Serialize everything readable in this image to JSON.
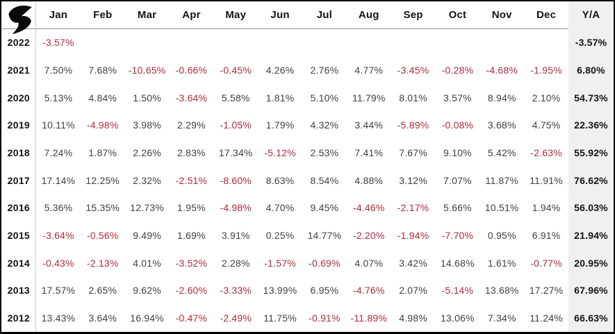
{
  "header": {
    "logo_icon": "brand-r-swoosh-icon"
  },
  "colors": {
    "negative_text": "#b02a3a",
    "positive_text": "#3f3f3f",
    "ya_column_bg": "#f0f0f1",
    "grid_vline": "#cccccc",
    "header_rule": "#8f8f8f",
    "border": "#000000"
  },
  "chart_data": {
    "type": "table",
    "columns": [
      "Jan",
      "Feb",
      "Mar",
      "Apr",
      "May",
      "Jun",
      "Jul",
      "Aug",
      "Sep",
      "Oct",
      "Nov",
      "Dec",
      "Y/A"
    ],
    "rows": [
      {
        "year": "2022",
        "monthly": [
          "-3.57%",
          "",
          "",
          "",
          "",
          "",
          "",
          "",
          "",
          "",
          "",
          ""
        ],
        "yearly": "-3.57%"
      },
      {
        "year": "2021",
        "monthly": [
          "7.50%",
          "7.68%",
          "-10.65%",
          "-0.66%",
          "-0.45%",
          "4.26%",
          "2.76%",
          "4.77%",
          "-3.45%",
          "-0.28%",
          "-4.68%",
          "-1.95%"
        ],
        "yearly": "6.80%"
      },
      {
        "year": "2020",
        "monthly": [
          "5.13%",
          "4.84%",
          "1.50%",
          "-3.64%",
          "5.58%",
          "1.81%",
          "5.10%",
          "11.79%",
          "8.01%",
          "3.57%",
          "8.94%",
          "2.10%"
        ],
        "yearly": "54.73%"
      },
      {
        "year": "2019",
        "monthly": [
          "10.11%",
          "-4.98%",
          "3.98%",
          "2.29%",
          "-1.05%",
          "1.79%",
          "4.32%",
          "3.44%",
          "-5.89%",
          "-0.08%",
          "3.68%",
          "4.75%"
        ],
        "yearly": "22.36%"
      },
      {
        "year": "2018",
        "monthly": [
          "7.24%",
          "1.87%",
          "2.26%",
          "2.83%",
          "17.34%",
          "-5.12%",
          "2.53%",
          "7.41%",
          "7.67%",
          "9.10%",
          "5.42%",
          "-2.63%"
        ],
        "yearly": "55.92%"
      },
      {
        "year": "2017",
        "monthly": [
          "17.14%",
          "12.25%",
          "2.32%",
          "-2.51%",
          "-8.60%",
          "8.63%",
          "8.54%",
          "4.88%",
          "3.12%",
          "7.07%",
          "11.87%",
          "11.91%"
        ],
        "yearly": "76.62%"
      },
      {
        "year": "2016",
        "monthly": [
          "5.36%",
          "15.35%",
          "12.73%",
          "1.95%",
          "-4.98%",
          "4.70%",
          "9.45%",
          "-4.46%",
          "-2.17%",
          "5.66%",
          "10.51%",
          "1.94%"
        ],
        "yearly": "56.03%"
      },
      {
        "year": "2015",
        "monthly": [
          "-3.64%",
          "-0.56%",
          "9.49%",
          "1.69%",
          "3.91%",
          "0.25%",
          "14.77%",
          "-2.20%",
          "-1.94%",
          "-7.70%",
          "0.95%",
          "6.91%"
        ],
        "yearly": "21.94%"
      },
      {
        "year": "2014",
        "monthly": [
          "-0.43%",
          "-2.13%",
          "4.01%",
          "-3.52%",
          "2.28%",
          "-1.57%",
          "-0.69%",
          "4.07%",
          "3.42%",
          "14.68%",
          "1.61%",
          "-0.77%"
        ],
        "yearly": "20.95%"
      },
      {
        "year": "2013",
        "monthly": [
          "17.57%",
          "2.65%",
          "9.62%",
          "-2.60%",
          "-3.33%",
          "13.99%",
          "6.95%",
          "-4.76%",
          "2.07%",
          "-5.14%",
          "13.68%",
          "17.27%"
        ],
        "yearly": "67.96%"
      },
      {
        "year": "2012",
        "monthly": [
          "13.43%",
          "3.64%",
          "16.94%",
          "-0.47%",
          "-2.49%",
          "11.75%",
          "-0.91%",
          "-11.89%",
          "4.98%",
          "13.06%",
          "7.34%",
          "11.24%"
        ],
        "yearly": "66.63%"
      }
    ]
  }
}
